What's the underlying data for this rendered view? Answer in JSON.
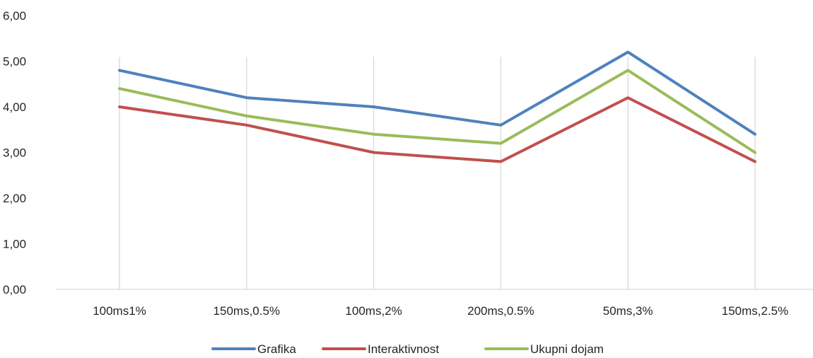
{
  "chart_data": {
    "type": "line",
    "categories": [
      "100ms1%",
      "150ms,0.5%",
      "100ms,2%",
      "200ms,0.5%",
      "50ms,3%",
      "150ms,2.5%"
    ],
    "series": [
      {
        "name": "Grafika",
        "color": "#4f81bd",
        "values": [
          4.8,
          4.2,
          4.0,
          3.6,
          5.2,
          3.4
        ]
      },
      {
        "name": "Interaktivnost",
        "color": "#c0504d",
        "values": [
          4.0,
          3.6,
          3.0,
          2.8,
          4.2,
          2.8
        ]
      },
      {
        "name": "Ukupni dojam",
        "color": "#9bbb59",
        "values": [
          4.4,
          3.8,
          3.4,
          3.2,
          4.8,
          3.0
        ]
      }
    ],
    "y_ticks": [
      "0,00",
      "1,00",
      "2,00",
      "3,00",
      "4,00",
      "5,00",
      "6,00"
    ],
    "ylim": [
      0,
      6
    ],
    "grid": "vertical",
    "legend_position": "bottom"
  }
}
